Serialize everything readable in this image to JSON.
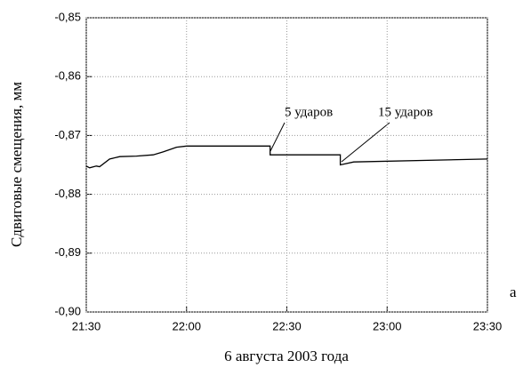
{
  "chart_data": {
    "type": "line",
    "y_label": "Сдвиговые смещения, мм",
    "x_label": "6 августа 2003 года",
    "annotations": [
      "5 ударов",
      "15 ударов",
      "а"
    ],
    "x": [
      "21:30",
      "21:31",
      "21:33",
      "21:34",
      "21:37",
      "21:40",
      "21:45",
      "21:50",
      "21:53",
      "21:57",
      "22:00",
      "22:25",
      "22:25",
      "22:46",
      "22:46",
      "22:50",
      "23:30"
    ],
    "series": [
      {
        "color": "#000000",
        "values": [
          -0.8752,
          -0.8755,
          -0.8752,
          -0.8753,
          -0.874,
          -0.8736,
          -0.8735,
          -0.8733,
          -0.8728,
          -0.872,
          -0.8718,
          -0.8718,
          -0.8733,
          -0.8733,
          -0.875,
          -0.8745,
          -0.874
        ]
      }
    ],
    "xlim": [
      "21:30",
      "23:30"
    ],
    "xticks": [
      "21:30",
      "22:00",
      "22:30",
      "23:00",
      "23:30"
    ],
    "ylim": [
      -0.9,
      -0.85
    ],
    "yticks": [
      {
        "value": -0.9,
        "label": "-0,90"
      },
      {
        "value": -0.89,
        "label": "-0,89"
      },
      {
        "value": -0.88,
        "label": "-0,88"
      },
      {
        "value": -0.87,
        "label": "-0,87"
      },
      {
        "value": -0.86,
        "label": "-0,86"
      },
      {
        "value": -0.85,
        "label": "-0,85"
      }
    ],
    "grid": true
  }
}
